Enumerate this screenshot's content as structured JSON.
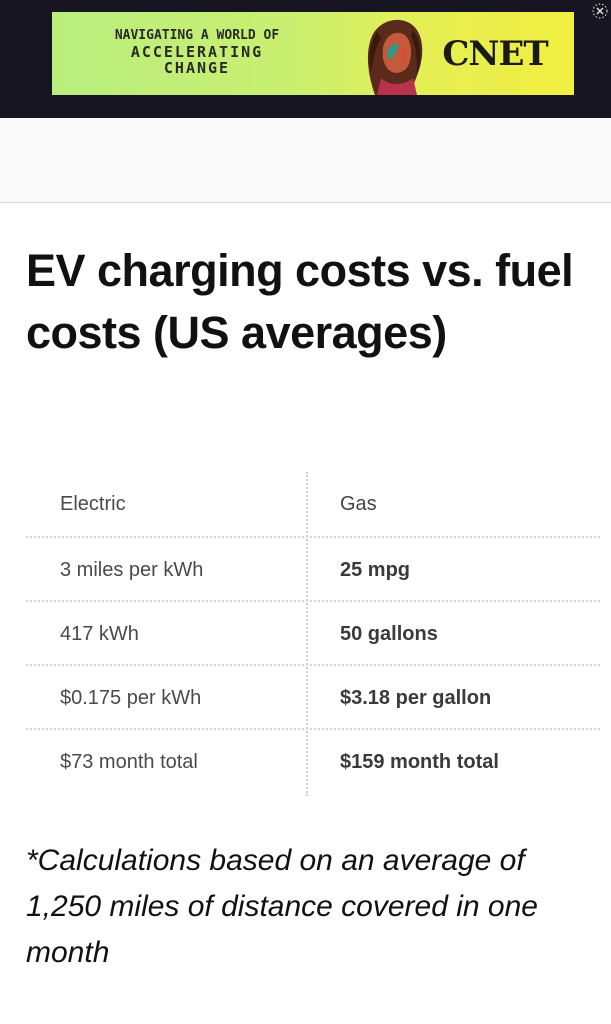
{
  "ad": {
    "line1": "NAVIGATING A WORLD OF",
    "line2": "ACCELERATING",
    "line3": "CHANGE",
    "brand": "CNET",
    "close_icon": "close-icon",
    "colors": {
      "gradient_start": "#b9ee7f",
      "gradient_end": "#f1ee3f",
      "bar": "#171522"
    }
  },
  "article": {
    "title": "EV charging costs vs. fuel costs (US averages)",
    "table": {
      "headers": [
        "Electric",
        "Gas"
      ],
      "rows": [
        [
          "3 miles per kWh",
          "25 mpg"
        ],
        [
          "417 kWh",
          "50 gallons"
        ],
        [
          "$0.175 per kWh",
          "$3.18 per gallon"
        ],
        [
          "$73 month total",
          "$159 month total"
        ]
      ]
    },
    "footnote": "*Calculations based on an average of 1,250 miles of distance covered in one month"
  }
}
